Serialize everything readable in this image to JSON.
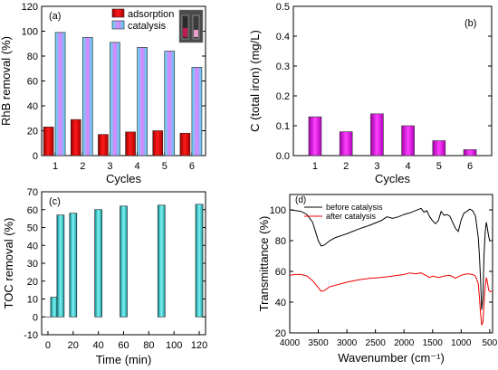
{
  "chart_data": [
    {
      "panel": "(a)",
      "type": "bar",
      "categories": [
        "1",
        "2",
        "3",
        "4",
        "5",
        "6"
      ],
      "series": [
        {
          "name": "adsorption",
          "color": "#e8001e",
          "values": [
            23,
            29,
            17,
            19,
            20,
            18
          ]
        },
        {
          "name": "catalysis",
          "color": "#b040ff",
          "values": [
            99,
            95,
            91,
            87,
            84,
            71
          ]
        }
      ],
      "xlabel": "Cycles",
      "ylabel": "RhB removal (%)",
      "ylim": [
        0,
        120
      ],
      "yticks": [
        0,
        20,
        40,
        60,
        80,
        100,
        120
      ],
      "legend": "top-center",
      "inset": "photo of two vials, top-right",
      "grid": false
    },
    {
      "panel": "(b)",
      "type": "bar",
      "categories": [
        "1",
        "2",
        "3",
        "4",
        "5",
        "6"
      ],
      "series": [
        {
          "color": "#dd00dd",
          "values": [
            0.13,
            0.08,
            0.14,
            0.1,
            0.05,
            0.02
          ]
        }
      ],
      "xlabel": "Cycles",
      "ylabel": "C (total iron) (mg/L)",
      "ylim": [
        0.0,
        0.5
      ],
      "yticks": [
        0.0,
        0.1,
        0.2,
        0.3,
        0.4,
        0.5
      ],
      "grid": false
    },
    {
      "panel": "(c)",
      "type": "bar",
      "x": [
        0,
        5,
        10,
        20,
        40,
        60,
        90,
        120
      ],
      "series": [
        {
          "color": "#27c5c9",
          "values": [
            0,
            11,
            57,
            58,
            60,
            62,
            62.5,
            63
          ]
        }
      ],
      "xlabel": "Time (min)",
      "ylabel": "TOC removal (%)",
      "xlim": [
        -5,
        125
      ],
      "xticks": [
        0,
        20,
        40,
        60,
        80,
        100,
        120
      ],
      "ylim": [
        -10,
        70
      ],
      "yticks": [
        -10,
        0,
        10,
        20,
        30,
        40,
        50,
        60,
        70
      ],
      "grid": false
    },
    {
      "panel": "(d)",
      "type": "line",
      "series": [
        {
          "name": "before catalysis",
          "color": "#000000",
          "x": [
            4000,
            3900,
            3800,
            3700,
            3600,
            3550,
            3500,
            3450,
            3400,
            3300,
            3200,
            3000,
            2800,
            2600,
            2400,
            2300,
            2200,
            2100,
            2000,
            1900,
            1800,
            1700,
            1650,
            1600,
            1550,
            1500,
            1450,
            1400,
            1350,
            1300,
            1250,
            1200,
            1150,
            1100,
            1050,
            1000,
            950,
            900,
            850,
            800,
            750,
            700,
            680,
            660,
            640,
            620,
            600,
            580,
            560,
            540,
            520,
            500,
            450
          ],
          "y": [
            100,
            99.5,
            99,
            97,
            92,
            86,
            80,
            76.5,
            77,
            80,
            82,
            84.5,
            87.5,
            90,
            93,
            95.5,
            94.5,
            95.5,
            97,
            98,
            99.5,
            101,
            98.5,
            99.5,
            95.5,
            93,
            91,
            93,
            99,
            96.5,
            97,
            96,
            92,
            88,
            86,
            93.5,
            98,
            99,
            100.5,
            99.5,
            96,
            82,
            70,
            55,
            35,
            42,
            70,
            85,
            92,
            88,
            83,
            80,
            80
          ]
        },
        {
          "name": "after catalysis",
          "color": "#ee0000",
          "x": [
            4000,
            3900,
            3800,
            3700,
            3600,
            3500,
            3450,
            3400,
            3300,
            3200,
            3000,
            2800,
            2600,
            2400,
            2200,
            2000,
            1900,
            1800,
            1700,
            1650,
            1600,
            1550,
            1500,
            1450,
            1400,
            1300,
            1200,
            1100,
            1000,
            900,
            800,
            750,
            700,
            680,
            660,
            640,
            620,
            600,
            580,
            560,
            540,
            520,
            500,
            450
          ],
          "y": [
            57.5,
            58,
            58,
            57,
            54,
            49.5,
            47,
            47.5,
            50,
            51,
            53,
            54.5,
            55.5,
            56,
            57,
            58,
            59,
            58.5,
            59,
            58,
            57,
            56,
            57,
            56.5,
            56,
            57,
            57.5,
            55.5,
            57.5,
            58.5,
            58,
            57,
            52,
            43,
            33,
            25,
            27,
            38,
            50,
            56,
            53,
            48,
            47,
            47
          ]
        }
      ],
      "xlabel": "Wavenumber (cm⁻¹)",
      "ylabel": "Transmittance (%)",
      "xlim": [
        4000,
        450
      ],
      "xticks": [
        4000,
        3500,
        3000,
        2500,
        2000,
        1500,
        1000,
        500
      ],
      "ylim": [
        20,
        110
      ],
      "yticks": [
        20,
        40,
        60,
        80,
        100
      ],
      "legend": "top-left",
      "grid": false
    }
  ]
}
